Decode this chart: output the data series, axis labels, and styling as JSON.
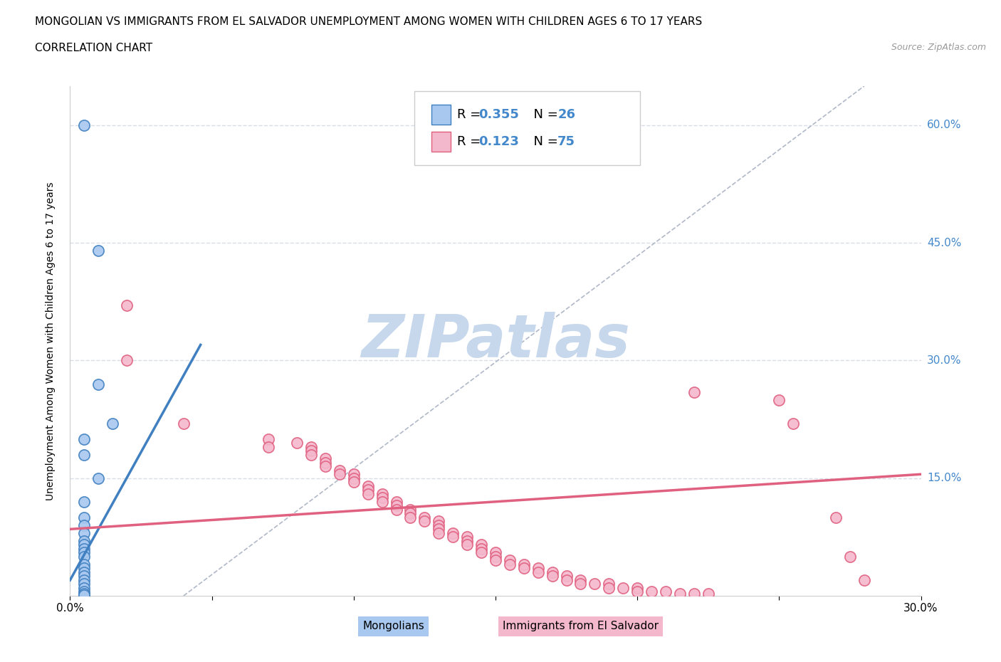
{
  "title_line1": "MONGOLIAN VS IMMIGRANTS FROM EL SALVADOR UNEMPLOYMENT AMONG WOMEN WITH CHILDREN AGES 6 TO 17 YEARS",
  "title_line2": "CORRELATION CHART",
  "source": "Source: ZipAtlas.com",
  "ylabel": "Unemployment Among Women with Children Ages 6 to 17 years",
  "xlim": [
    0.0,
    0.3
  ],
  "ylim": [
    0.0,
    0.65
  ],
  "xticks": [
    0.0,
    0.05,
    0.1,
    0.15,
    0.2,
    0.25,
    0.3
  ],
  "xtick_labels": [
    "0.0%",
    "",
    "",
    "",
    "",
    "",
    "30.0%"
  ],
  "ytick_right_labels": [
    "15.0%",
    "30.0%",
    "45.0%",
    "60.0%"
  ],
  "ytick_right_vals": [
    0.15,
    0.3,
    0.45,
    0.6
  ],
  "mongolian_R": 0.355,
  "mongolian_N": 26,
  "salvador_R": 0.123,
  "salvador_N": 75,
  "mongolian_color": "#a8c8f0",
  "salvador_color": "#f4b8cc",
  "mongolian_line_color": "#4080c0",
  "salvador_line_color": "#e06080",
  "ref_line_color": "#b0b8c8",
  "background_color": "#ffffff",
  "grid_color": "#d8dde8",
  "mongolian_scatter": [
    [
      0.005,
      0.6
    ],
    [
      0.01,
      0.44
    ],
    [
      0.01,
      0.27
    ],
    [
      0.015,
      0.22
    ],
    [
      0.005,
      0.2
    ],
    [
      0.005,
      0.18
    ],
    [
      0.01,
      0.15
    ],
    [
      0.005,
      0.12
    ],
    [
      0.005,
      0.1
    ],
    [
      0.005,
      0.09
    ],
    [
      0.005,
      0.08
    ],
    [
      0.005,
      0.07
    ],
    [
      0.005,
      0.065
    ],
    [
      0.005,
      0.06
    ],
    [
      0.005,
      0.055
    ],
    [
      0.005,
      0.05
    ],
    [
      0.005,
      0.04
    ],
    [
      0.005,
      0.035
    ],
    [
      0.005,
      0.03
    ],
    [
      0.005,
      0.025
    ],
    [
      0.005,
      0.02
    ],
    [
      0.005,
      0.015
    ],
    [
      0.005,
      0.01
    ],
    [
      0.005,
      0.005
    ],
    [
      0.005,
      0.003
    ],
    [
      0.005,
      0.001
    ]
  ],
  "salvador_scatter": [
    [
      0.02,
      0.37
    ],
    [
      0.02,
      0.3
    ],
    [
      0.04,
      0.22
    ],
    [
      0.07,
      0.2
    ],
    [
      0.07,
      0.19
    ],
    [
      0.08,
      0.195
    ],
    [
      0.085,
      0.19
    ],
    [
      0.085,
      0.185
    ],
    [
      0.085,
      0.18
    ],
    [
      0.09,
      0.175
    ],
    [
      0.09,
      0.17
    ],
    [
      0.09,
      0.165
    ],
    [
      0.095,
      0.16
    ],
    [
      0.095,
      0.155
    ],
    [
      0.1,
      0.155
    ],
    [
      0.1,
      0.15
    ],
    [
      0.1,
      0.145
    ],
    [
      0.105,
      0.14
    ],
    [
      0.105,
      0.135
    ],
    [
      0.105,
      0.13
    ],
    [
      0.11,
      0.13
    ],
    [
      0.11,
      0.125
    ],
    [
      0.11,
      0.12
    ],
    [
      0.115,
      0.12
    ],
    [
      0.115,
      0.115
    ],
    [
      0.115,
      0.11
    ],
    [
      0.12,
      0.11
    ],
    [
      0.12,
      0.105
    ],
    [
      0.12,
      0.1
    ],
    [
      0.125,
      0.1
    ],
    [
      0.125,
      0.095
    ],
    [
      0.13,
      0.095
    ],
    [
      0.13,
      0.09
    ],
    [
      0.13,
      0.085
    ],
    [
      0.13,
      0.08
    ],
    [
      0.135,
      0.08
    ],
    [
      0.135,
      0.075
    ],
    [
      0.14,
      0.075
    ],
    [
      0.14,
      0.07
    ],
    [
      0.14,
      0.065
    ],
    [
      0.145,
      0.065
    ],
    [
      0.145,
      0.06
    ],
    [
      0.145,
      0.055
    ],
    [
      0.15,
      0.055
    ],
    [
      0.15,
      0.05
    ],
    [
      0.15,
      0.045
    ],
    [
      0.155,
      0.045
    ],
    [
      0.155,
      0.04
    ],
    [
      0.16,
      0.04
    ],
    [
      0.16,
      0.035
    ],
    [
      0.165,
      0.035
    ],
    [
      0.165,
      0.03
    ],
    [
      0.17,
      0.03
    ],
    [
      0.17,
      0.025
    ],
    [
      0.175,
      0.025
    ],
    [
      0.175,
      0.02
    ],
    [
      0.18,
      0.02
    ],
    [
      0.18,
      0.015
    ],
    [
      0.185,
      0.015
    ],
    [
      0.19,
      0.015
    ],
    [
      0.19,
      0.01
    ],
    [
      0.195,
      0.01
    ],
    [
      0.2,
      0.01
    ],
    [
      0.2,
      0.005
    ],
    [
      0.205,
      0.005
    ],
    [
      0.21,
      0.005
    ],
    [
      0.215,
      0.003
    ],
    [
      0.22,
      0.26
    ],
    [
      0.22,
      0.003
    ],
    [
      0.225,
      0.003
    ],
    [
      0.25,
      0.25
    ],
    [
      0.255,
      0.22
    ],
    [
      0.27,
      0.1
    ],
    [
      0.275,
      0.05
    ],
    [
      0.28,
      0.02
    ]
  ],
  "watermark_text": "ZIPatlas",
  "watermark_color": "#c8d8ec",
  "legend_fontsize": 13,
  "title_fontsize": 11,
  "axis_label_color": "#4488cc"
}
